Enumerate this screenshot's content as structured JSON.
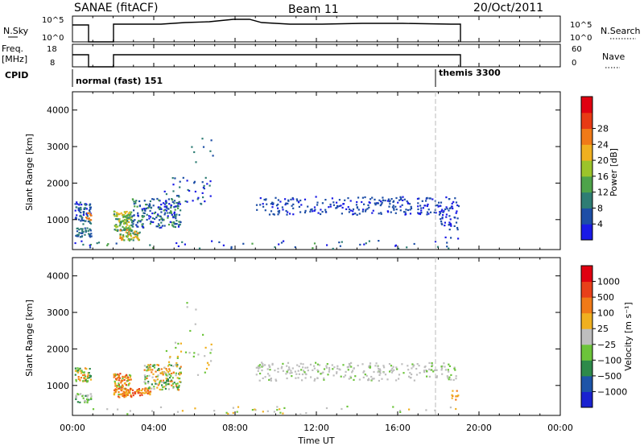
{
  "header": {
    "station": "SANAE (fitACF)",
    "beam": "Beam 11",
    "date": "20/Oct/2011"
  },
  "nsky_panel": {
    "left_label": "N.Sky",
    "right_label": "N.Search",
    "left_ticks": [
      "10^5",
      "10^0"
    ],
    "right_ticks": [
      "10^5",
      "10^0"
    ]
  },
  "freq_panel": {
    "left_label_1": "Freq.",
    "left_label_2": "[MHz]",
    "right_label": "Nave",
    "left_ticks": [
      "18",
      "8"
    ],
    "right_ticks": [
      "60",
      "0"
    ]
  },
  "cpid_panel": {
    "label": "CPID",
    "modes": [
      {
        "name": "normal (fast) 151",
        "start_hour": 0
      },
      {
        "name": "themis 3300",
        "start_hour": 18
      }
    ]
  },
  "chart_data": [
    {
      "type": "heatmap",
      "name": "power",
      "ylabel": "Slant Range [km]",
      "xlim": [
        0,
        24
      ],
      "ylim": [
        180,
        4500
      ],
      "yticks": [
        1000,
        2000,
        3000,
        4000
      ],
      "colorbar_label": "Power [dB]",
      "colorbar_ticks": [
        "4",
        "8",
        "12",
        "16",
        "20",
        "24",
        "28"
      ],
      "colorbar_colors": [
        "#1a1ae6",
        "#1d4ea6",
        "#2e7d74",
        "#4ea34a",
        "#9cc42a",
        "#f0b020",
        "#f07a18",
        "#e83a14",
        "#e00010"
      ]
    },
    {
      "type": "heatmap",
      "name": "velocity",
      "ylabel": "Slant Range [km]",
      "xlabel": "Time UT",
      "xlim": [
        0,
        24
      ],
      "ylim": [
        180,
        4500
      ],
      "yticks": [
        1000,
        2000,
        3000,
        4000
      ],
      "xtick_labels": [
        "00:00",
        "04:00",
        "08:00",
        "12:00",
        "16:00",
        "20:00",
        "00:00"
      ],
      "colorbar_label": "Velocity [m s⁻¹]",
      "colorbar_ticks": [
        "1000",
        "500",
        "100",
        "25",
        "−25",
        "−100",
        "−500",
        "−1000"
      ],
      "colorbar_colors": [
        "#1a22d0",
        "#1d54a8",
        "#2e8a4a",
        "#6cc43a",
        "#bebebe",
        "#f0b020",
        "#f07a18",
        "#e8401a",
        "#e00010"
      ]
    }
  ]
}
